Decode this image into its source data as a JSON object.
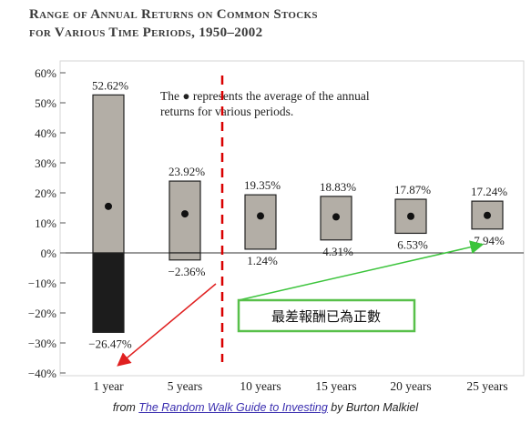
{
  "title_lines": [
    "Range of Annual Returns on Common Stocks",
    "for Various Time Periods, 1950–2002"
  ],
  "legend_note_lines": [
    "The ● represents the average of the annual",
    "returns for various periods."
  ],
  "callout_text": "最差報酬已為正數",
  "caption": {
    "prefix": "from ",
    "link_text": "The Random Walk Guide to Investing",
    "suffix": " by Burton Malkiel"
  },
  "chart_data": {
    "type": "bar",
    "categories": [
      "1 year",
      "5 years",
      "10 years",
      "15 years",
      "20 years",
      "25 years"
    ],
    "series": [
      {
        "high": 52.62,
        "low": -26.47,
        "average": 15.5,
        "high_label": "52.62%",
        "low_label": "−26.47%"
      },
      {
        "high": 23.92,
        "low": -2.36,
        "average": 13.0,
        "high_label": "23.92%",
        "low_label": "−2.36%"
      },
      {
        "high": 19.35,
        "low": 1.24,
        "average": 12.3,
        "high_label": "19.35%",
        "low_label": "1.24%"
      },
      {
        "high": 18.83,
        "low": 4.31,
        "average": 12.0,
        "high_label": "18.83%",
        "low_label": "4.31%"
      },
      {
        "high": 17.87,
        "low": 6.53,
        "average": 12.2,
        "high_label": "17.87%",
        "low_label": "6.53%"
      },
      {
        "high": 17.24,
        "low": 7.94,
        "average": 12.5,
        "high_label": "17.24%",
        "low_label": "7.94%"
      }
    ],
    "yticks": [
      "60%",
      "50%",
      "40%",
      "30%",
      "20%",
      "10%",
      "0%",
      "−10%",
      "−20%",
      "−30%",
      "−40%"
    ],
    "ylim": [
      -40,
      60
    ],
    "colors": {
      "bar_fill": "#b3aea6",
      "negative_fill": "#1c1c1c",
      "zero_line": "#333333",
      "divider": "#d90000",
      "red_arrow": "#e02020",
      "green_arrow": "#3cc43c",
      "callout_border": "#58c04a"
    }
  }
}
